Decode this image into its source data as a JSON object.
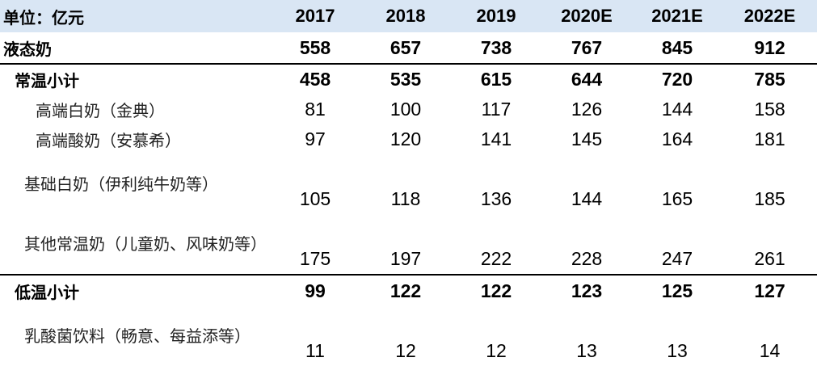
{
  "table": {
    "unit_label": "单位：亿元",
    "years": [
      "2017",
      "2018",
      "2019",
      "2020E",
      "2021E",
      "2022E"
    ],
    "rows": {
      "liquid_milk": {
        "label": "液态奶",
        "values": [
          "558",
          "657",
          "738",
          "767",
          "845",
          "912"
        ]
      },
      "ambient_subtotal": {
        "label": "常温小计",
        "values": [
          "458",
          "535",
          "615",
          "644",
          "720",
          "785"
        ]
      },
      "premium_white": {
        "label": "高端白奶（金典）",
        "values": [
          "81",
          "100",
          "117",
          "126",
          "144",
          "158"
        ]
      },
      "premium_yogurt": {
        "label": "高端酸奶（安慕希）",
        "values": [
          "97",
          "120",
          "141",
          "145",
          "164",
          "181"
        ]
      },
      "basic_white": {
        "label": "基础白奶（伊利纯牛奶等）",
        "values": [
          "105",
          "118",
          "136",
          "144",
          "165",
          "185"
        ]
      },
      "other_ambient": {
        "label": "其他常温奶（儿童奶、风味奶等）",
        "values": [
          "175",
          "197",
          "222",
          "228",
          "247",
          "261"
        ]
      },
      "chilled_subtotal": {
        "label": "低温小计",
        "values": [
          "99",
          "122",
          "122",
          "123",
          "125",
          "127"
        ]
      },
      "lactic_drinks": {
        "label": "乳酸菌饮料（畅意、每益添等）",
        "values": [
          "11",
          "12",
          "12",
          "13",
          "13",
          "14"
        ]
      }
    }
  }
}
